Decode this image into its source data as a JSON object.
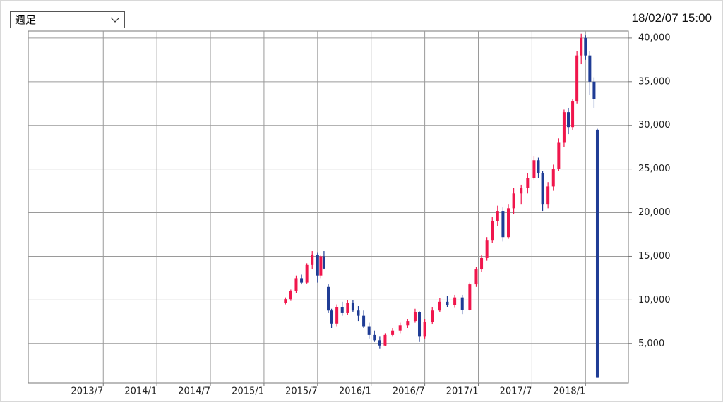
{
  "controls": {
    "period_select": "週足",
    "timestamp": "18/02/07 15:00"
  },
  "chart_data": {
    "type": "candlestick",
    "x": [
      2015.2,
      2015.25,
      2015.3,
      2015.35,
      2015.4,
      2015.45,
      2015.5,
      2015.53,
      2015.56,
      2015.6,
      2015.63,
      2015.68,
      2015.73,
      2015.78,
      2015.83,
      2015.88,
      2015.93,
      2015.98,
      2016.03,
      2016.08,
      2016.13,
      2016.2,
      2016.27,
      2016.34,
      2016.41,
      2016.45,
      2016.5,
      2016.57,
      2016.64,
      2016.71,
      2016.78,
      2016.85,
      2016.92,
      2016.98,
      2017.03,
      2017.08,
      2017.13,
      2017.18,
      2017.23,
      2017.28,
      2017.33,
      2017.4,
      2017.46,
      2017.52,
      2017.56,
      2017.6,
      2017.65,
      2017.7,
      2017.75,
      2017.8,
      2017.84,
      2017.88,
      2017.92,
      2017.96,
      2018.0,
      2018.04,
      2018.08,
      2018.11
    ],
    "open": [
      9700,
      10100,
      11000,
      12500,
      12000,
      14000,
      15200,
      12800,
      15000,
      11500,
      8800,
      7300,
      9200,
      8500,
      9700,
      8800,
      8200,
      7000,
      6000,
      5400,
      4800,
      6000,
      6500,
      7100,
      7600,
      8600,
      5800,
      7500,
      8800,
      9800,
      9400,
      10300,
      8900,
      11800,
      13500,
      14800,
      16800,
      19000,
      20200,
      17200,
      20500,
      22200,
      22800,
      24000,
      26000,
      24500,
      21000,
      23000,
      25000,
      28000,
      31500,
      29800,
      32800,
      38000,
      40000,
      38000,
      35000,
      29500
    ],
    "high": [
      10300,
      11200,
      12800,
      12900,
      14200,
      15600,
      15400,
      15200,
      15600,
      11800,
      9000,
      9500,
      9800,
      10000,
      10000,
      9300,
      8800,
      7400,
      6500,
      5800,
      6200,
      6800,
      7400,
      7800,
      9000,
      8700,
      7800,
      9200,
      10200,
      10500,
      10600,
      10600,
      12000,
      13800,
      15200,
      17200,
      19500,
      20800,
      20600,
      21000,
      22800,
      23200,
      24500,
      26500,
      26300,
      24800,
      23500,
      25500,
      28500,
      31800,
      32000,
      33000,
      38500,
      40500,
      40300,
      38500,
      35500,
      29600
    ],
    "low": [
      9500,
      9900,
      10800,
      11800,
      11900,
      13500,
      12000,
      12500,
      13500,
      8500,
      6800,
      7000,
      8200,
      8300,
      8600,
      7600,
      6800,
      5600,
      5200,
      4400,
      4700,
      5800,
      6200,
      6800,
      7400,
      5200,
      5600,
      7200,
      8600,
      9200,
      9100,
      8400,
      8800,
      11500,
      13200,
      14500,
      16500,
      18500,
      16700,
      17000,
      19800,
      21000,
      22200,
      23800,
      24000,
      20200,
      20500,
      22500,
      24800,
      27500,
      29000,
      29500,
      32500,
      37000,
      37500,
      33500,
      32000,
      1100
    ],
    "close": [
      10100,
      11000,
      12500,
      12000,
      14000,
      15200,
      12800,
      15000,
      13600,
      8800,
      7300,
      9200,
      8500,
      9700,
      8800,
      8200,
      7000,
      6000,
      5400,
      4800,
      6000,
      6500,
      7100,
      7600,
      8600,
      5800,
      7500,
      8800,
      9800,
      9400,
      10300,
      8900,
      11800,
      13500,
      14800,
      16800,
      19000,
      20200,
      17200,
      20500,
      22200,
      22800,
      24000,
      26000,
      24500,
      21000,
      23000,
      25000,
      28000,
      31500,
      29800,
      32800,
      38000,
      40000,
      38000,
      35000,
      33000,
      1100
    ],
    "up_color": "#f0164c",
    "down_color": "#1f3c95",
    "xlim": [
      2012.8,
      2018.4
    ],
    "xticks": [
      {
        "value": 2013.5,
        "label": "2013/7"
      },
      {
        "value": 2014.0,
        "label": "2014/1"
      },
      {
        "value": 2014.5,
        "label": "2014/7"
      },
      {
        "value": 2015.0,
        "label": "2015/1"
      },
      {
        "value": 2015.5,
        "label": "2015/7"
      },
      {
        "value": 2016.0,
        "label": "2016/1"
      },
      {
        "value": 2016.5,
        "label": "2016/7"
      },
      {
        "value": 2017.0,
        "label": "2017/1"
      },
      {
        "value": 2017.5,
        "label": "2017/7"
      },
      {
        "value": 2018.0,
        "label": "2018/1"
      }
    ],
    "ylim": [
      500,
      40800
    ],
    "yticks": [
      {
        "value": 5000,
        "label": "5,000"
      },
      {
        "value": 10000,
        "label": "10,000"
      },
      {
        "value": 15000,
        "label": "15,000"
      },
      {
        "value": 20000,
        "label": "20,000"
      },
      {
        "value": 25000,
        "label": "25,000"
      },
      {
        "value": 30000,
        "label": "30,000"
      },
      {
        "value": 35000,
        "label": "35,000"
      },
      {
        "value": 40000,
        "label": "40,000"
      }
    ],
    "grid": true
  }
}
